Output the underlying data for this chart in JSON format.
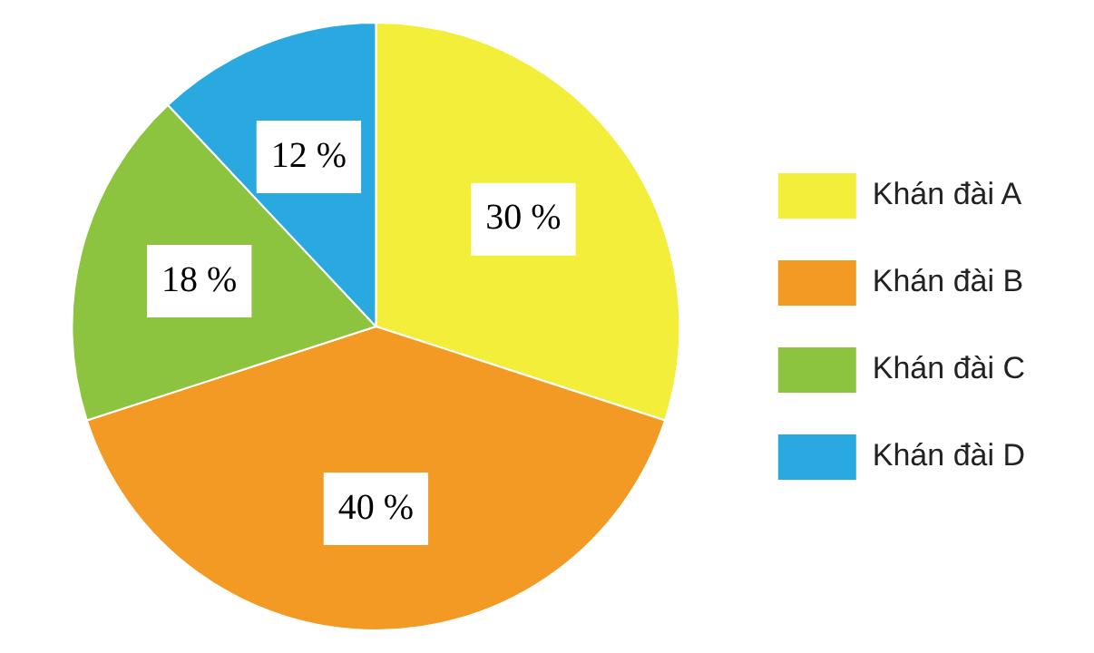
{
  "chart_data": {
    "type": "pie",
    "categories": [
      "Khán đài A",
      "Khán đài B",
      "Khán đài C",
      "Khán đài D"
    ],
    "values": [
      30,
      40,
      18,
      12
    ],
    "colors": [
      "#f2ee3a",
      "#f39a24",
      "#8dc43f",
      "#2aa9e0"
    ],
    "value_labels": [
      "30 %",
      "40 %",
      "18 %",
      "12 %"
    ],
    "legend": "right"
  }
}
